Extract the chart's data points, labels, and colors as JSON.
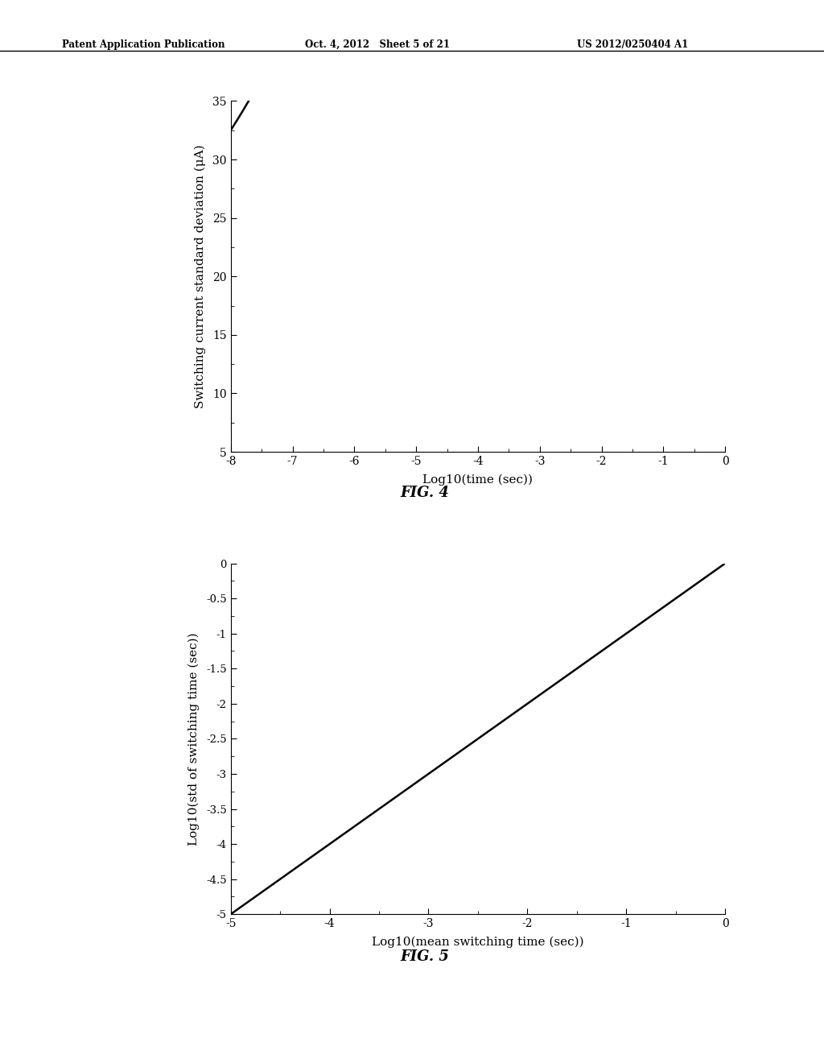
{
  "fig4": {
    "title": "FIG. 4",
    "xlabel": "Log10(time (sec))",
    "ylabel": "Switching current standard deviation (μA)",
    "xlim": [
      -8,
      0
    ],
    "ylim": [
      5,
      35
    ],
    "xticks": [
      -8,
      -7,
      -6,
      -5,
      -4,
      -3,
      -2,
      -1,
      0
    ],
    "yticks": [
      5,
      10,
      15,
      20,
      25,
      30,
      35
    ],
    "curve_color": "#000000",
    "curve_lw": 1.8,
    "curve_A": 11.0,
    "curve_B": 21.5,
    "curve_k": 0.38
  },
  "fig5": {
    "title": "FIG. 5",
    "xlabel": "Log10(mean switching time (sec))",
    "ylabel": "Log10(std of switching time (sec))",
    "xlim": [
      -5,
      0
    ],
    "ylim": [
      -5,
      0
    ],
    "xticks": [
      -5,
      -4,
      -3,
      -2,
      -1,
      0
    ],
    "yticks": [
      -5,
      -4.5,
      -4,
      -3.5,
      -3,
      -2.5,
      -2,
      -1.5,
      -1,
      -0.5,
      0
    ],
    "line_color": "#000000",
    "line_lw": 1.8
  },
  "header_left": "Patent Application Publication",
  "header_center": "Oct. 4, 2012   Sheet 5 of 21",
  "header_right": "US 2012/0250404 A1",
  "background_color": "#ffffff",
  "text_color": "#000000"
}
